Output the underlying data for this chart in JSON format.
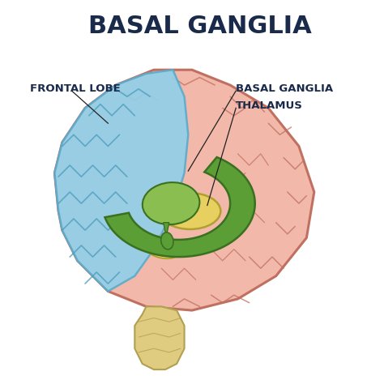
{
  "title": "BASAL GANGLIA",
  "title_color": "#1a2a4a",
  "title_fontsize": 22,
  "background_color": "#ffffff",
  "labels": {
    "frontal_lobe": "FRONTAL LOBE",
    "basal_ganglia": "BASAL GANGLIA",
    "thalamus": "THALAMUS"
  },
  "label_fontsize": 9.5,
  "label_color": "#1a2a4a",
  "colors": {
    "brain_fill": "#f2b8aa",
    "brain_stroke": "#c07060",
    "brain_stroke_thin": "#c07060",
    "frontal_lobe_fill": "#90d0ea",
    "frontal_lobe_stroke": "#5aabcc",
    "frontal_lobe_gyri": "#4a9abb",
    "basal_ganglia_outer_fill": "#5a9e35",
    "basal_ganglia_outer_stroke": "#3a7020",
    "basal_ganglia_inner_fill": "#8abe50",
    "basal_ganglia_inner_stroke": "#3a7020",
    "thalamus_fill": "#e8d060",
    "thalamus_stroke": "#b0a030",
    "brainstem_fill": "#e0cc80",
    "brainstem_stroke": "#b0a050",
    "line_color": "#222222"
  }
}
